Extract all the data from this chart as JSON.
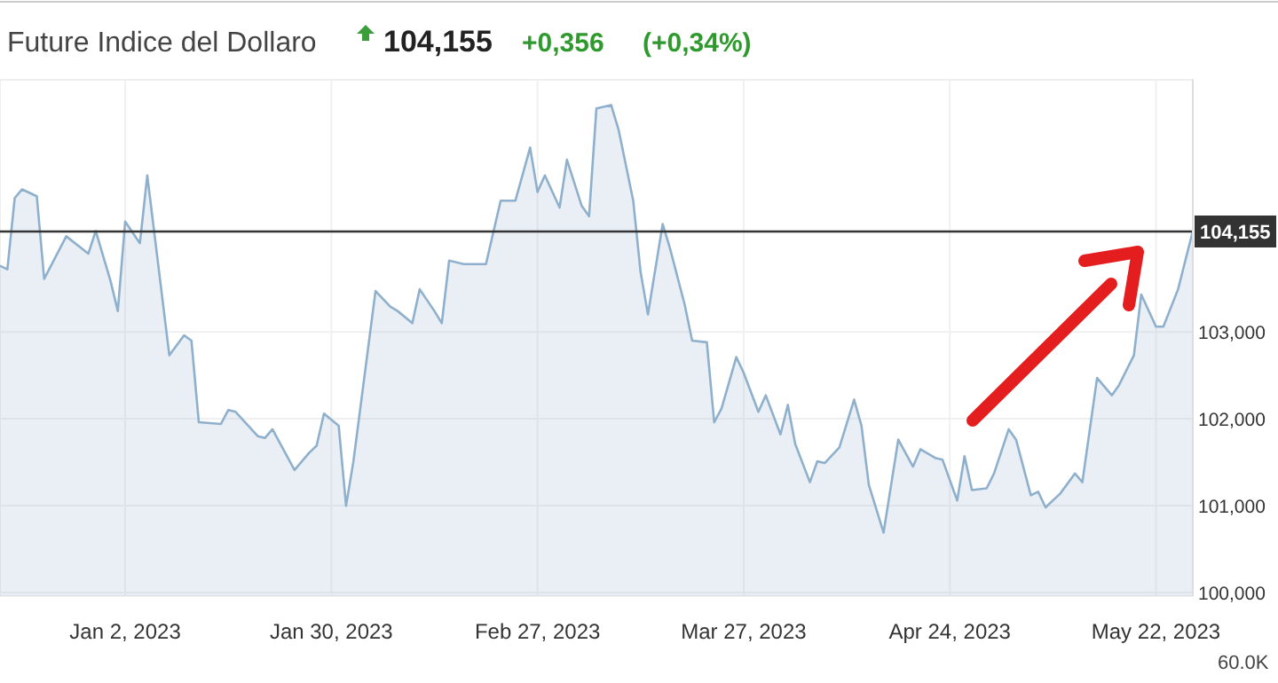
{
  "chart_data": {
    "type": "area",
    "title": "Future Indice del Dollaro",
    "subtitle": "104,155",
    "annotations": [
      "+0,356",
      "(+0,34%)",
      "60.0K"
    ],
    "x": [
      "2022-12-16",
      "2022-12-17",
      "2022-12-18",
      "2022-12-19",
      "2022-12-21",
      "2022-12-22",
      "2022-12-25",
      "2022-12-28",
      "2022-12-29",
      "2022-12-31",
      "2023-01-01",
      "2023-01-02",
      "2023-01-04",
      "2023-01-05",
      "2023-01-08",
      "2023-01-10",
      "2023-01-11",
      "2023-01-12",
      "2023-01-15",
      "2023-01-16",
      "2023-01-17",
      "2023-01-20",
      "2023-01-21",
      "2023-01-22",
      "2023-01-25",
      "2023-01-27",
      "2023-01-28",
      "2023-01-29",
      "2023-01-31",
      "2023-02-01",
      "2023-02-02",
      "2023-02-05",
      "2023-02-07",
      "2023-02-08",
      "2023-02-10",
      "2023-02-11",
      "2023-02-13",
      "2023-02-14",
      "2023-02-15",
      "2023-02-17",
      "2023-02-20",
      "2023-02-22",
      "2023-02-24",
      "2023-02-26",
      "2023-02-27",
      "2023-02-28",
      "2023-03-02",
      "2023-03-03",
      "2023-03-05",
      "2023-03-06",
      "2023-03-07",
      "2023-03-09",
      "2023-03-10",
      "2023-03-12",
      "2023-03-13",
      "2023-03-14",
      "2023-03-16",
      "2023-03-17",
      "2023-03-19",
      "2023-03-20",
      "2023-03-22",
      "2023-03-23",
      "2023-03-24",
      "2023-03-26",
      "2023-03-27",
      "2023-03-29",
      "2023-03-30",
      "2023-04-01",
      "2023-04-02",
      "2023-04-03",
      "2023-04-05",
      "2023-04-06",
      "2023-04-07",
      "2023-04-09",
      "2023-04-11",
      "2023-04-12",
      "2023-04-13",
      "2023-04-15",
      "2023-04-17",
      "2023-04-19",
      "2023-04-20",
      "2023-04-22",
      "2023-04-23",
      "2023-04-25",
      "2023-04-26",
      "2023-04-27",
      "2023-04-29",
      "2023-04-30",
      "2023-05-02",
      "2023-05-03",
      "2023-05-05",
      "2023-05-06",
      "2023-05-07",
      "2023-05-09",
      "2023-05-11",
      "2023-05-12",
      "2023-05-14",
      "2023-05-16",
      "2023-05-17",
      "2023-05-19",
      "2023-05-20",
      "2023-05-22",
      "2023-05-23",
      "2023-05-25",
      "2023-05-27"
    ],
    "series": [
      {
        "color": "#8fb0cc",
        "values": [
          103.76,
          103.72,
          104.54,
          104.64,
          104.56,
          103.61,
          104.1,
          103.9,
          104.16,
          103.59,
          103.24,
          104.27,
          104.02,
          104.8,
          102.73,
          102.96,
          102.9,
          101.96,
          101.94,
          102.1,
          102.08,
          101.8,
          101.78,
          101.88,
          101.41,
          101.61,
          101.69,
          102.06,
          101.92,
          101.0,
          101.51,
          103.47,
          103.29,
          103.24,
          103.1,
          103.49,
          103.24,
          103.1,
          103.82,
          103.78,
          103.78,
          104.51,
          104.51,
          105.12,
          104.61,
          104.8,
          104.43,
          104.98,
          104.45,
          104.33,
          105.57,
          105.61,
          105.33,
          104.51,
          103.69,
          103.2,
          104.24,
          103.96,
          103.31,
          102.9,
          102.88,
          101.96,
          102.12,
          102.71,
          102.53,
          102.08,
          102.27,
          101.82,
          102.16,
          101.71,
          101.27,
          101.51,
          101.49,
          101.67,
          102.22,
          101.92,
          101.24,
          100.69,
          101.76,
          101.45,
          101.65,
          101.55,
          101.53,
          101.06,
          101.57,
          101.18,
          101.2,
          101.37,
          101.88,
          101.76,
          101.12,
          101.16,
          100.98,
          101.14,
          101.37,
          101.27,
          102.47,
          102.27,
          102.39,
          102.73,
          103.43,
          103.06,
          103.06,
          103.49,
          104.16
        ]
      }
    ],
    "xlim": [
      "2022-12-16",
      "2023-05-27"
    ],
    "xticks": [
      {
        "value": "2023-01-02",
        "label": "Jan 2, 2023"
      },
      {
        "value": "2023-01-30",
        "label": "Jan 30, 2023"
      },
      {
        "value": "2023-02-27",
        "label": "Feb 27, 2023"
      },
      {
        "value": "2023-03-27",
        "label": "Mar 27, 2023"
      },
      {
        "value": "2023-04-24",
        "label": "Apr 24, 2023"
      },
      {
        "value": "2023-05-22",
        "label": "May 22, 2023"
      }
    ],
    "ylim": [
      99.96,
      105.9
    ],
    "yticks": [
      {
        "value": 100,
        "label": "100,000"
      },
      {
        "value": 101,
        "label": "101,000"
      },
      {
        "value": 102,
        "label": "102,000"
      },
      {
        "value": 103,
        "label": "103,000"
      }
    ],
    "ref_lines": [
      {
        "axis": "y",
        "value": 104.155,
        "label": "104,155",
        "color": "#333333"
      }
    ],
    "grid": true,
    "marker": "none",
    "line_style": "solid"
  }
}
